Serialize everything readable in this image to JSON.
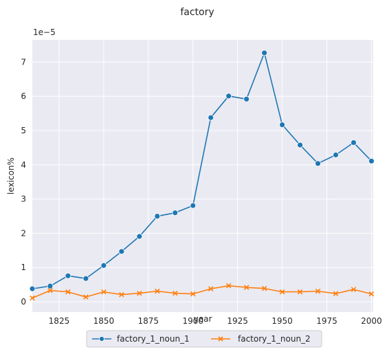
{
  "chart_data": {
    "type": "line",
    "title": "factory",
    "xlabel": "year",
    "ylabel": "lexicon%",
    "y_scale_label": "1e−5",
    "xlim": [
      1810,
      2001
    ],
    "ylim": [
      -0.3,
      7.65
    ],
    "xticks": [
      1825,
      1850,
      1875,
      1900,
      1925,
      1950,
      1975,
      2000
    ],
    "yticks": [
      0,
      1,
      2,
      3,
      4,
      5,
      6,
      7
    ],
    "grid": true,
    "legend_position": "bottom-center",
    "background": "#eaeaf2",
    "x": [
      1810,
      1820,
      1830,
      1840,
      1850,
      1860,
      1870,
      1880,
      1890,
      1900,
      1910,
      1920,
      1930,
      1940,
      1950,
      1960,
      1970,
      1980,
      1990,
      2000
    ],
    "series": [
      {
        "name": "factory_1_noun_1",
        "color": "#1f77b4",
        "marker": "circle",
        "values": [
          0.38,
          0.46,
          0.76,
          0.68,
          1.06,
          1.47,
          1.91,
          2.5,
          2.6,
          2.81,
          5.38,
          6.01,
          5.92,
          7.27,
          5.17,
          4.58,
          4.04,
          4.29,
          4.65,
          4.11
        ]
      },
      {
        "name": "factory_1_noun_2",
        "color": "#ff7f0e",
        "marker": "x",
        "values": [
          0.11,
          0.33,
          0.29,
          0.14,
          0.29,
          0.21,
          0.25,
          0.31,
          0.25,
          0.23,
          0.38,
          0.47,
          0.42,
          0.39,
          0.29,
          0.29,
          0.31,
          0.24,
          0.36,
          0.23
        ]
      }
    ]
  }
}
